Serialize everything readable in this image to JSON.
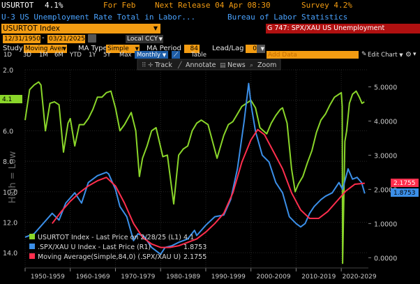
{
  "header": {
    "ticker": "USURTOT",
    "value": "4.1%",
    "period": "For Feb",
    "next_release": "Next Release 04 Apr 08:30",
    "survey": "Survey 4.2%",
    "description": "U-3 US Unemployment Rate Total in Labor...",
    "source": "Bureau of Labor Statistics"
  },
  "titlebar": {
    "index": "USURTOT Index",
    "graph": "G 747: SPX/XAU US Unemployment"
  },
  "dates": {
    "start": "12/31/1950",
    "end": "03/21/2025",
    "currency": "Local CCY"
  },
  "study": {
    "label": "Study",
    "value": "Moving Aver",
    "ma_type_label": "MA Type",
    "ma_type": "Simple",
    "ma_period_label": "MA Period",
    "ma_period": "84",
    "lead_lag_label": "Lead/Lag",
    "lead_lag": "0"
  },
  "toolbar": {
    "ranges": [
      "1D",
      "3D",
      "1M",
      "6M",
      "YTD",
      "1Y",
      "5Y",
      "Max"
    ],
    "frequency": "Monthly",
    "table": "Table",
    "add_data": "Add Data",
    "edit_chart": "Edit Chart"
  },
  "float_toolbar": {
    "track": "Track",
    "annotate": "Annotate",
    "news": "News",
    "zoom": "Zoom"
  },
  "colors": {
    "green": "#8ad62a",
    "blue": "#3b8fe8",
    "red": "#ff2e4d",
    "orange": "#f39c12"
  },
  "chart_data": {
    "type": "line",
    "y_left": {
      "label": "High = Low",
      "ticks": [
        "2.0",
        "4.0",
        "6.0",
        "8.0",
        "10.0",
        "12.0",
        "14.0"
      ],
      "inverted": true,
      "range": [
        2,
        15
      ]
    },
    "y_right": {
      "ticks": [
        "5.0000",
        "4.0000",
        "3.0000",
        "2.0000",
        "1.0000",
        "0.0000"
      ],
      "range": [
        -0.3,
        5.5
      ]
    },
    "x_ticks": [
      "1950-1959",
      "1960-1969",
      "1970-1979",
      "1980-1989",
      "1990-1999",
      "2000-2009",
      "2010-2019",
      "2020-2029"
    ],
    "x_range": [
      1950,
      2026
    ],
    "series": [
      {
        "name": "USURTOT Index - Last Price on 2/28/25 (L1)",
        "legend_value": "4.1",
        "axis": "left",
        "points": [
          [
            1950.0,
            5.3
          ],
          [
            1951.0,
            3.3
          ],
          [
            1952.0,
            3.0
          ],
          [
            1953.0,
            2.8
          ],
          [
            1953.5,
            3.0
          ],
          [
            1954.5,
            6.0
          ],
          [
            1955.5,
            4.2
          ],
          [
            1956.5,
            4.1
          ],
          [
            1957.5,
            4.3
          ],
          [
            1958.5,
            7.4
          ],
          [
            1959.5,
            5.5
          ],
          [
            1960.0,
            5.2
          ],
          [
            1961.0,
            7.0
          ],
          [
            1962.0,
            5.6
          ],
          [
            1963.0,
            5.6
          ],
          [
            1964.0,
            5.2
          ],
          [
            1965.0,
            4.6
          ],
          [
            1966.0,
            3.8
          ],
          [
            1967.0,
            3.8
          ],
          [
            1968.0,
            3.5
          ],
          [
            1969.0,
            3.4
          ],
          [
            1970.0,
            4.5
          ],
          [
            1971.0,
            6.0
          ],
          [
            1972.0,
            5.6
          ],
          [
            1973.5,
            4.8
          ],
          [
            1974.5,
            6.0
          ],
          [
            1975.3,
            9.0
          ],
          [
            1976.0,
            7.8
          ],
          [
            1977.0,
            7.0
          ],
          [
            1978.0,
            6.0
          ],
          [
            1979.0,
            5.8
          ],
          [
            1980.5,
            7.7
          ],
          [
            1981.5,
            7.6
          ],
          [
            1982.9,
            10.8
          ],
          [
            1984.0,
            7.6
          ],
          [
            1985.0,
            7.2
          ],
          [
            1986.0,
            7.0
          ],
          [
            1987.0,
            6.0
          ],
          [
            1988.0,
            5.5
          ],
          [
            1989.0,
            5.3
          ],
          [
            1990.5,
            5.6
          ],
          [
            1992.5,
            7.8
          ],
          [
            1994.0,
            6.3
          ],
          [
            1995.0,
            5.6
          ],
          [
            1996.0,
            5.4
          ],
          [
            1997.0,
            4.9
          ],
          [
            1998.0,
            4.4
          ],
          [
            1999.0,
            4.2
          ],
          [
            2000.0,
            4.0
          ],
          [
            2001.0,
            4.5
          ],
          [
            2002.0,
            5.8
          ],
          [
            2003.5,
            6.2
          ],
          [
            2004.5,
            5.5
          ],
          [
            2005.5,
            5.0
          ],
          [
            2006.5,
            4.6
          ],
          [
            2007.0,
            4.5
          ],
          [
            2008.0,
            5.5
          ],
          [
            2009.0,
            8.5
          ],
          [
            2009.8,
            10.0
          ],
          [
            2010.5,
            9.5
          ],
          [
            2011.5,
            9.0
          ],
          [
            2012.5,
            8.1
          ],
          [
            2013.5,
            7.3
          ],
          [
            2014.5,
            6.1
          ],
          [
            2015.5,
            5.3
          ],
          [
            2016.5,
            4.9
          ],
          [
            2017.5,
            4.3
          ],
          [
            2018.5,
            3.8
          ],
          [
            2019.5,
            3.6
          ],
          [
            2020.0,
            3.5
          ],
          [
            2020.2,
            4.4
          ],
          [
            2020.3,
            14.7
          ],
          [
            2020.6,
            10.0
          ],
          [
            2020.8,
            6.7
          ],
          [
            2021.2,
            6.0
          ],
          [
            2021.8,
            4.2
          ],
          [
            2022.5,
            3.6
          ],
          [
            2023.3,
            3.4
          ],
          [
            2024.0,
            3.8
          ],
          [
            2024.6,
            4.2
          ],
          [
            2025.1,
            4.1
          ]
        ]
      },
      {
        "name": ".SPX/XAU U Index - Last Price (R1)",
        "legend_value": "1.8753",
        "axis": "right",
        "points": [
          [
            1950.0,
            0.6
          ],
          [
            1952.0,
            0.7
          ],
          [
            1954.0,
            1.0
          ],
          [
            1956.0,
            1.3
          ],
          [
            1957.5,
            1.1
          ],
          [
            1959.0,
            1.6
          ],
          [
            1961.0,
            1.9
          ],
          [
            1962.5,
            1.6
          ],
          [
            1964.0,
            2.2
          ],
          [
            1966.0,
            2.4
          ],
          [
            1968.0,
            2.5
          ],
          [
            1968.5,
            2.45
          ],
          [
            1970.0,
            2.0
          ],
          [
            1971.0,
            1.5
          ],
          [
            1972.5,
            1.2
          ],
          [
            1974.0,
            0.5
          ],
          [
            1975.0,
            0.7
          ],
          [
            1976.5,
            0.6
          ],
          [
            1978.0,
            0.3
          ],
          [
            1980.0,
            0.1
          ],
          [
            1981.0,
            0.3
          ],
          [
            1982.5,
            0.35
          ],
          [
            1984.0,
            0.45
          ],
          [
            1986.0,
            0.55
          ],
          [
            1987.5,
            0.8
          ],
          [
            1988.0,
            0.65
          ],
          [
            1990.0,
            0.95
          ],
          [
            1992.0,
            1.2
          ],
          [
            1994.0,
            1.25
          ],
          [
            1995.5,
            1.7
          ],
          [
            1997.0,
            2.6
          ],
          [
            1998.5,
            4.0
          ],
          [
            1999.5,
            5.1
          ],
          [
            2000.0,
            4.5
          ],
          [
            2001.0,
            3.7
          ],
          [
            2002.5,
            3.0
          ],
          [
            2004.0,
            2.8
          ],
          [
            2005.5,
            2.2
          ],
          [
            2007.0,
            1.9
          ],
          [
            2008.5,
            1.2
          ],
          [
            2010.0,
            1.0
          ],
          [
            2011.0,
            0.9
          ],
          [
            2012.0,
            1.0
          ],
          [
            2013.0,
            1.3
          ],
          [
            2014.0,
            1.5
          ],
          [
            2015.5,
            1.7
          ],
          [
            2016.5,
            1.8
          ],
          [
            2018.0,
            1.9
          ],
          [
            2019.5,
            2.2
          ],
          [
            2020.3,
            2.0
          ],
          [
            2021.5,
            2.6
          ],
          [
            2022.5,
            2.3
          ],
          [
            2023.5,
            2.35
          ],
          [
            2024.5,
            2.2
          ],
          [
            2025.2,
            1.88
          ]
        ]
      },
      {
        "name": "Moving Average(Simple,84,0) (.SPX/XAU U)",
        "legend_value": "2.1755",
        "axis": "right",
        "points": [
          [
            1956.0,
            1.0
          ],
          [
            1958.0,
            1.35
          ],
          [
            1960.0,
            1.65
          ],
          [
            1962.0,
            1.9
          ],
          [
            1964.0,
            2.1
          ],
          [
            1966.0,
            2.25
          ],
          [
            1968.0,
            2.35
          ],
          [
            1970.0,
            2.1
          ],
          [
            1972.0,
            1.6
          ],
          [
            1974.0,
            1.0
          ],
          [
            1976.0,
            0.6
          ],
          [
            1978.0,
            0.4
          ],
          [
            1980.0,
            0.3
          ],
          [
            1982.0,
            0.3
          ],
          [
            1984.0,
            0.35
          ],
          [
            1986.0,
            0.45
          ],
          [
            1988.0,
            0.55
          ],
          [
            1990.0,
            0.75
          ],
          [
            1992.0,
            1.0
          ],
          [
            1994.0,
            1.3
          ],
          [
            1996.0,
            1.9
          ],
          [
            1998.0,
            2.8
          ],
          [
            2000.0,
            3.45
          ],
          [
            2001.5,
            3.75
          ],
          [
            2003.0,
            3.6
          ],
          [
            2005.0,
            3.1
          ],
          [
            2007.0,
            2.6
          ],
          [
            2009.0,
            1.9
          ],
          [
            2011.0,
            1.4
          ],
          [
            2013.0,
            1.15
          ],
          [
            2015.0,
            1.15
          ],
          [
            2017.0,
            1.35
          ],
          [
            2019.0,
            1.65
          ],
          [
            2021.0,
            1.95
          ],
          [
            2023.0,
            2.15
          ],
          [
            2025.2,
            2.18
          ]
        ]
      }
    ]
  }
}
